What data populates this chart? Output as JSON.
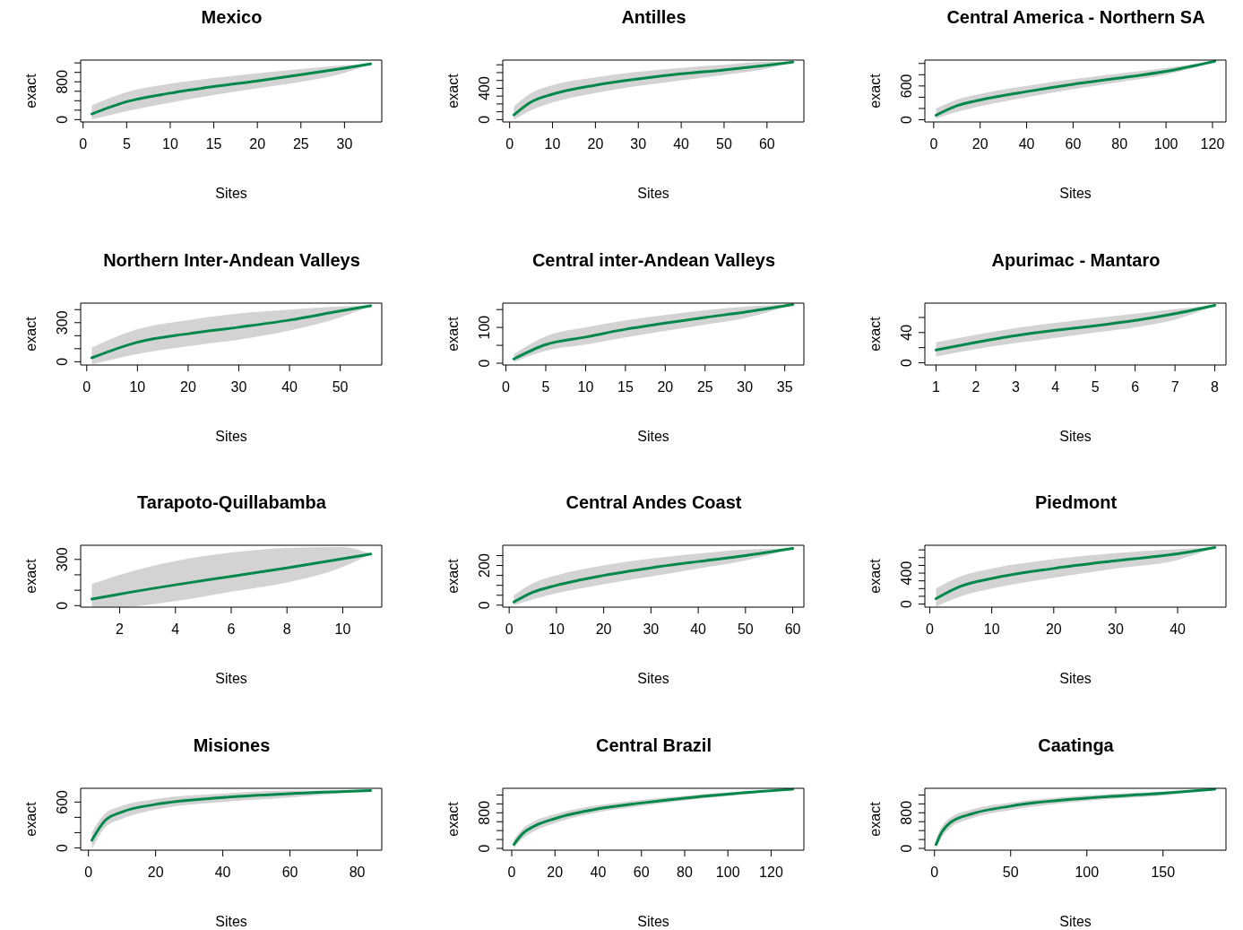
{
  "chart_data": [
    {
      "type": "line",
      "title": "Mexico",
      "xlabel": "Sites",
      "ylabel": "exact",
      "x": [
        1,
        5,
        10,
        15,
        20,
        25,
        30,
        33
      ],
      "series": [
        {
          "color": "#00884a",
          "values": [
            120,
            380,
            560,
            700,
            820,
            950,
            1090,
            1180
          ],
          "upper": [
            300,
            580,
            760,
            880,
            980,
            1070,
            1150,
            1180
          ],
          "lower": [
            0,
            180,
            360,
            520,
            660,
            800,
            990,
            1180
          ]
        }
      ],
      "xlim": [
        -0.28,
        34.28
      ],
      "xticks": [
        0,
        5,
        10,
        15,
        20,
        25,
        30
      ],
      "ylim": [
        -50,
        1260
      ],
      "yticks": [
        0,
        {
          "value": 200,
          "label": null
        },
        {
          "value": 400,
          "label": null
        },
        {
          "value": 600,
          "label": null
        },
        800,
        {
          "value": 1000,
          "label": null
        },
        {
          "value": 1200,
          "label": null
        }
      ]
    },
    {
      "type": "line",
      "title": "Antilles",
      "xlabel": "Sites",
      "ylabel": "exact",
      "x": [
        1,
        5,
        10,
        20,
        30,
        40,
        50,
        60,
        66
      ],
      "series": [
        {
          "color": "#00884a",
          "values": [
            60,
            225,
            325,
            440,
            520,
            585,
            635,
            695,
            735
          ],
          "upper": [
            170,
            340,
            440,
            540,
            610,
            660,
            700,
            740,
            735
          ],
          "lower": [
            0,
            120,
            220,
            340,
            430,
            500,
            570,
            650,
            735
          ]
        }
      ],
      "xlim": [
        -1.6,
        68.6
      ],
      "xticks": [
        0,
        10,
        20,
        30,
        40,
        50,
        60
      ],
      "ylim": [
        -30,
        760
      ],
      "yticks": [
        0,
        {
          "value": 100,
          "label": null
        },
        {
          "value": 200,
          "label": null
        },
        {
          "value": 300,
          "label": null
        },
        400,
        {
          "value": 500,
          "label": null
        },
        {
          "value": 600,
          "label": null
        },
        {
          "value": 700,
          "label": null
        }
      ]
    },
    {
      "type": "line",
      "title": "Central America - Northern SA",
      "xlabel": "Sites",
      "ylabel": "exact",
      "x": [
        1,
        10,
        20,
        40,
        60,
        80,
        100,
        121
      ],
      "series": [
        {
          "color": "#00884a",
          "values": [
            80,
            250,
            350,
            500,
            630,
            740,
            860,
            1040
          ],
          "upper": [
            200,
            360,
            460,
            600,
            720,
            820,
            920,
            1040
          ],
          "lower": [
            20,
            140,
            240,
            400,
            540,
            670,
            800,
            1040
          ]
        }
      ],
      "xlim": [
        -3.8,
        125.8
      ],
      "xticks": [
        0,
        20,
        40,
        60,
        80,
        100,
        120
      ],
      "ylim": [
        -40,
        1060
      ],
      "yticks": [
        0,
        {
          "value": 200,
          "label": null
        },
        {
          "value": 400,
          "label": null
        },
        600,
        {
          "value": 800,
          "label": null
        },
        {
          "value": 1000,
          "label": null
        }
      ]
    },
    {
      "type": "line",
      "title": "Northern Inter-Andean Valleys",
      "xlabel": "Sites",
      "ylabel": "exact",
      "x": [
        1,
        10,
        20,
        30,
        40,
        50,
        56
      ],
      "series": [
        {
          "color": "#00884a",
          "values": [
            30,
            150,
            215,
            265,
            320,
            390,
            430
          ],
          "upper": [
            110,
            250,
            320,
            370,
            400,
            425,
            430
          ],
          "lower": [
            -20,
            60,
            120,
            170,
            240,
            340,
            430
          ]
        }
      ],
      "xlim": [
        -1.2,
        58.2
      ],
      "xticks": [
        0,
        10,
        20,
        30,
        40,
        50
      ],
      "ylim": [
        -25,
        450
      ],
      "yticks": [
        0,
        {
          "value": 100,
          "label": null
        },
        {
          "value": 200,
          "label": null
        },
        300,
        {
          "value": 400,
          "label": null
        }
      ]
    },
    {
      "type": "line",
      "title": "Central inter-Andean Valleys",
      "xlabel": "Sites",
      "ylabel": "exact",
      "x": [
        1,
        5,
        10,
        15,
        20,
        25,
        30,
        36
      ],
      "series": [
        {
          "color": "#00884a",
          "values": [
            12,
            52,
            73,
            95,
            112,
            128,
            143,
            164
          ],
          "upper": [
            25,
            75,
            100,
            120,
            135,
            148,
            158,
            164
          ],
          "lower": [
            3,
            35,
            52,
            72,
            90,
            108,
            126,
            164
          ]
        }
      ],
      "xlim": [
        -0.4,
        37.4
      ],
      "xticks": [
        0,
        5,
        10,
        15,
        20,
        25,
        30,
        35
      ],
      "ylim": [
        -5,
        168
      ],
      "yticks": [
        0,
        {
          "value": 50,
          "label": null
        },
        100,
        {
          "value": 150,
          "label": null
        }
      ]
    },
    {
      "type": "line",
      "title": "Apurimac - Mantaro",
      "xlabel": "Sites",
      "ylabel": "exact",
      "x": [
        1,
        2,
        3,
        4,
        5,
        6,
        7,
        8
      ],
      "series": [
        {
          "color": "#00884a",
          "values": [
            17,
            27,
            36,
            43,
            49,
            56,
            65,
            76
          ],
          "upper": [
            27,
            37,
            46,
            53,
            59,
            65,
            71,
            76
          ],
          "lower": [
            8,
            18,
            26,
            33,
            40,
            47,
            57,
            76
          ]
        }
      ],
      "xlim": [
        0.72,
        8.28
      ],
      "xticks": [
        1,
        2,
        3,
        4,
        5,
        6,
        7,
        8
      ],
      "ylim": [
        -3,
        79
      ],
      "yticks": [
        0,
        {
          "value": 20,
          "label": null
        },
        40,
        {
          "value": 60,
          "label": null
        }
      ]
    },
    {
      "type": "line",
      "title": "Tarapoto-Quillabamba",
      "xlabel": "Sites",
      "ylabel": "exact",
      "x": [
        1,
        2,
        4,
        6,
        8,
        10,
        11
      ],
      "series": [
        {
          "color": "#00884a",
          "values": [
            42,
            75,
            135,
            190,
            245,
            305,
            335
          ],
          "upper": [
            140,
            200,
            290,
            345,
            375,
            380,
            335
          ],
          "lower": [
            -8,
            -8,
            30,
            90,
            150,
            250,
            335
          ]
        }
      ],
      "xlim": [
        0.6,
        11.4
      ],
      "xticks": [
        2,
        4,
        6,
        8,
        10
      ],
      "ylim": [
        -10,
        392
      ],
      "yticks": [
        0,
        {
          "value": 100,
          "label": null
        },
        {
          "value": 200,
          "label": null
        },
        300
      ]
    },
    {
      "type": "line",
      "title": "Central Andes Coast",
      "xlabel": "Sites",
      "ylabel": "exact",
      "x": [
        1,
        5,
        10,
        20,
        30,
        40,
        50,
        60
      ],
      "series": [
        {
          "color": "#00884a",
          "values": [
            16,
            65,
            100,
            150,
            188,
            220,
            250,
            286
          ],
          "upper": [
            50,
            110,
            150,
            200,
            235,
            260,
            280,
            286
          ],
          "lower": [
            0,
            30,
            60,
            105,
            145,
            185,
            225,
            286
          ]
        }
      ],
      "xlim": [
        -1.36,
        62.36
      ],
      "xticks": [
        0,
        10,
        20,
        30,
        40,
        50,
        60
      ],
      "ylim": [
        -10,
        302
      ],
      "yticks": [
        0,
        {
          "value": 50,
          "label": null
        },
        {
          "value": 100,
          "label": null
        },
        {
          "value": 150,
          "label": null
        },
        200,
        {
          "value": 250,
          "label": null
        }
      ]
    },
    {
      "type": "line",
      "title": "Piedmont",
      "xlabel": "Sites",
      "ylabel": "exact",
      "x": [
        1,
        5,
        10,
        20,
        30,
        40,
        46
      ],
      "series": [
        {
          "color": "#00884a",
          "values": [
            70,
            230,
            330,
            460,
            560,
            650,
            730
          ],
          "upper": [
            200,
            360,
            460,
            580,
            660,
            710,
            730
          ],
          "lower": [
            -30,
            100,
            200,
            340,
            460,
            570,
            730
          ]
        }
      ],
      "xlim": [
        -0.8,
        47.8
      ],
      "xticks": [
        0,
        10,
        20,
        30,
        40
      ],
      "ylim": [
        -40,
        760
      ],
      "yticks": [
        0,
        {
          "value": 100,
          "label": null
        },
        {
          "value": 200,
          "label": null
        },
        {
          "value": 300,
          "label": null
        },
        400,
        {
          "value": 500,
          "label": null
        },
        {
          "value": 600,
          "label": null
        },
        {
          "value": 700,
          "label": null
        }
      ]
    },
    {
      "type": "line",
      "title": "Misiones",
      "xlabel": "Sites",
      "ylabel": "exact",
      "x": [
        1,
        5,
        10,
        20,
        40,
        60,
        84
      ],
      "series": [
        {
          "color": "#00884a",
          "values": [
            100,
            360,
            470,
            570,
            660,
            710,
            750
          ],
          "upper": [
            200,
            450,
            550,
            640,
            710,
            750,
            750
          ],
          "lower": [
            -20,
            270,
            380,
            500,
            600,
            660,
            750
          ]
        }
      ],
      "xlim": [
        -2.32,
        87.32
      ],
      "xticks": [
        0,
        20,
        40,
        60,
        80
      ],
      "ylim": [
        -30,
        780
      ],
      "yticks": [
        0,
        {
          "value": 200,
          "label": null
        },
        {
          "value": 400,
          "label": null
        },
        600
      ]
    },
    {
      "type": "line",
      "title": "Central Brazil",
      "xlabel": "Sites",
      "ylabel": "exact",
      "x": [
        1,
        5,
        10,
        20,
        40,
        60,
        80,
        100,
        130
      ],
      "series": [
        {
          "color": "#00884a",
          "values": [
            90,
            330,
            490,
            670,
            890,
            1020,
            1130,
            1220,
            1330
          ],
          "upper": [
            200,
            440,
            600,
            770,
            970,
            1090,
            1180,
            1260,
            1330
          ],
          "lower": [
            0,
            220,
            380,
            570,
            810,
            950,
            1080,
            1180,
            1330
          ]
        }
      ],
      "xlim": [
        -4.16,
        135.16
      ],
      "xticks": [
        0,
        20,
        40,
        60,
        80,
        100,
        120
      ],
      "ylim": [
        -40,
        1350
      ],
      "yticks": [
        0,
        {
          "value": 200,
          "label": null
        },
        {
          "value": 400,
          "label": null
        },
        {
          "value": 600,
          "label": null
        },
        800,
        {
          "value": 1000,
          "label": null
        },
        {
          "value": 1200,
          "label": null
        }
      ]
    },
    {
      "type": "line",
      "title": "Caatinga",
      "xlabel": "Sites",
      "ylabel": "exact",
      "x": [
        1,
        5,
        10,
        25,
        50,
        100,
        150,
        184
      ],
      "series": [
        {
          "color": "#00884a",
          "values": [
            90,
            380,
            570,
            780,
            950,
            1130,
            1240,
            1330
          ],
          "upper": [
            220,
            500,
            680,
            880,
            1030,
            1190,
            1280,
            1330
          ],
          "lower": [
            0,
            260,
            450,
            680,
            860,
            1070,
            1190,
            1330
          ]
        }
      ],
      "xlim": [
        -6.32,
        191.32
      ],
      "xticks": [
        0,
        50,
        100,
        150
      ],
      "ylim": [
        -40,
        1350
      ],
      "yticks": [
        0,
        {
          "value": 200,
          "label": null
        },
        {
          "value": 400,
          "label": null
        },
        {
          "value": 600,
          "label": null
        },
        800,
        {
          "value": 1000,
          "label": null
        },
        {
          "value": 1200,
          "label": null
        }
      ]
    }
  ]
}
